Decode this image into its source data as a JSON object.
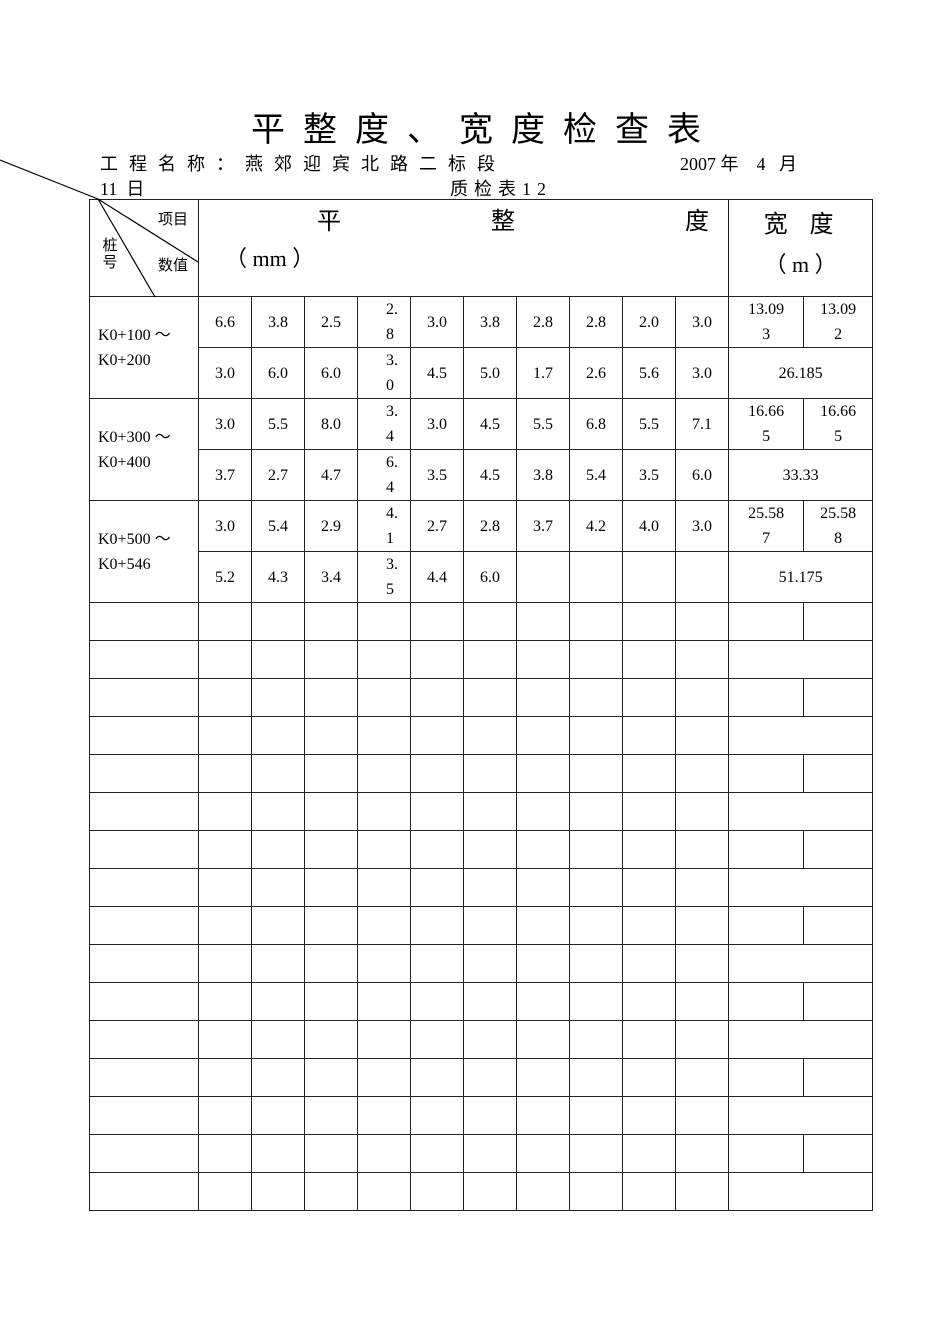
{
  "title": "平整度、宽度检查表",
  "project_label": "工程名称：燕郊迎宾北路二标段",
  "date_line1": "2007 年    4   月",
  "date_line2": "11  日",
  "form_no": "质检表12",
  "header": {
    "corner_item": "项目",
    "corner_value": "数值",
    "corner_stake": "桩号",
    "flatness_chars": [
      "平",
      "整",
      "度"
    ],
    "flatness_unit": "（ mm ）",
    "width_title": "宽度",
    "width_unit": "（ m ）"
  },
  "sections": [
    {
      "stake_from": "K0+100 ～",
      "stake_to": "K0+200",
      "row1": [
        "6.6",
        "3.8",
        "2.5",
        "2.8",
        "3.0",
        "3.8",
        "2.8",
        "2.8",
        "2.0",
        "3.0"
      ],
      "width_values": [
        "13.093",
        "13.092"
      ],
      "row2": [
        "3.0",
        "6.0",
        "6.0",
        "3.0",
        "4.5",
        "5.0",
        "1.7",
        "2.6",
        "5.6",
        "3.0"
      ],
      "width_total": "26.185"
    },
    {
      "stake_from": "K0+300 ～",
      "stake_to": "K0+400",
      "row1": [
        "3.0",
        "5.5",
        "8.0",
        "3.4",
        "3.0",
        "4.5",
        "5.5",
        "6.8",
        "5.5",
        "7.1"
      ],
      "width_values": [
        "16.665",
        "16.665"
      ],
      "row2": [
        "3.7",
        "2.7",
        "4.7",
        "6.4",
        "3.5",
        "4.5",
        "3.8",
        "5.4",
        "3.5",
        "6.0"
      ],
      "width_total": "33.33"
    },
    {
      "stake_from": "K0+500 ～",
      "stake_to": "K0+546",
      "row1": [
        "3.0",
        "5.4",
        "2.9",
        "4.1",
        "2.7",
        "2.8",
        "3.7",
        "4.2",
        "4.0",
        "3.0"
      ],
      "width_values": [
        "25.587",
        "25.588"
      ],
      "row2": [
        "5.2",
        "4.3",
        "3.4",
        "3.5",
        "4.4",
        "6.0",
        "",
        "",
        "",
        ""
      ],
      "width_total": "51.175"
    }
  ],
  "empty_sections": 8
}
